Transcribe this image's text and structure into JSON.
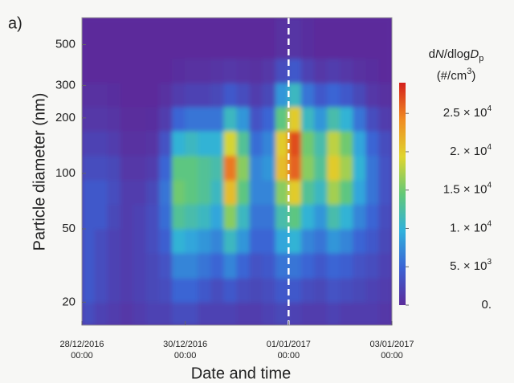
{
  "panel_label": "a)",
  "chart_data": {
    "type": "heatmap",
    "xlabel": "Date and time",
    "ylabel": "Particle diameter  (nm)",
    "xlim": [
      "2016-12-28 00:00",
      "2017-01-03 00:00"
    ],
    "xticks": [
      {
        "value": "2016-12-28 00:00",
        "label": "28/12/2016 00:00"
      },
      {
        "value": "2016-12-30 00:00",
        "label": "30/12/2016 00:00"
      },
      {
        "value": "2017-01-01 00:00",
        "label": "01/01/2017 00:00"
      },
      {
        "value": "2017-01-03 00:00",
        "label": "03/01/2017 00:00"
      }
    ],
    "yscale": "log",
    "ylim": [
      15,
      700
    ],
    "yticks": [
      20,
      50,
      100,
      200,
      300,
      500
    ],
    "vline": {
      "x": "2017-01-01 00:00",
      "color": "#ffffff",
      "style": "dashed"
    },
    "x_bins": [
      "2016-12-28 00:00",
      "2016-12-28 06:00",
      "2016-12-28 12:00",
      "2016-12-28 18:00",
      "2016-12-29 00:00",
      "2016-12-29 06:00",
      "2016-12-29 12:00",
      "2016-12-29 18:00",
      "2016-12-30 00:00",
      "2016-12-30 06:00",
      "2016-12-30 12:00",
      "2016-12-30 18:00",
      "2016-12-31 00:00",
      "2016-12-31 06:00",
      "2016-12-31 12:00",
      "2016-12-31 18:00",
      "2017-01-01 00:00",
      "2017-01-01 06:00",
      "2017-01-01 12:00",
      "2017-01-01 18:00",
      "2017-01-02 00:00",
      "2017-01-02 06:00",
      "2017-01-02 12:00",
      "2017-01-02 18:00",
      "2017-01-03 00:00"
    ],
    "y_bins": [
      15,
      20,
      27,
      37,
      50,
      68,
      92,
      125,
      170,
      230,
      310,
      420,
      700
    ],
    "values": [
      [
        3000,
        4000,
        4000,
        4000,
        4000,
        4000,
        3000,
        2000,
        1000,
        500,
        0,
        0
      ],
      [
        2000,
        3000,
        3000,
        3000,
        4000,
        4000,
        3000,
        2000,
        1000,
        500,
        0,
        0
      ],
      [
        1500,
        2000,
        2000,
        2000,
        2500,
        3000,
        2500,
        1500,
        800,
        300,
        0,
        0
      ],
      [
        1000,
        1500,
        1500,
        1500,
        1500,
        1500,
        1000,
        500,
        200,
        0,
        0,
        0
      ],
      [
        1500,
        2000,
        2000,
        2000,
        2000,
        1500,
        1000,
        500,
        200,
        0,
        0,
        0
      ],
      [
        2000,
        2500,
        2500,
        3000,
        3000,
        2500,
        1500,
        800,
        300,
        0,
        0,
        0
      ],
      [
        2000,
        3000,
        3500,
        4500,
        5500,
        6000,
        5000,
        3500,
        1500,
        500,
        0,
        0
      ],
      [
        3000,
        5000,
        7000,
        10000,
        13000,
        15000,
        14000,
        10000,
        5000,
        1500,
        300,
        0
      ],
      [
        3000,
        5000,
        7000,
        9000,
        12000,
        14000,
        14000,
        11000,
        6000,
        2000,
        500,
        0
      ],
      [
        2000,
        4000,
        6000,
        8000,
        11000,
        13000,
        13000,
        10000,
        6000,
        2000,
        500,
        0
      ],
      [
        2000,
        3000,
        5000,
        7000,
        9000,
        11000,
        12000,
        10000,
        6000,
        2500,
        800,
        0
      ],
      [
        2000,
        4000,
        7000,
        11000,
        16000,
        21000,
        25000,
        19000,
        11000,
        4000,
        1000,
        0
      ],
      [
        1500,
        3000,
        5000,
        8000,
        11000,
        14000,
        16000,
        13000,
        8000,
        3000,
        800,
        0
      ],
      [
        1500,
        2500,
        3500,
        5000,
        6000,
        7000,
        7000,
        5500,
        3500,
        1500,
        500,
        0
      ],
      [
        2000,
        3000,
        4000,
        5000,
        6000,
        7000,
        8000,
        7000,
        5000,
        2500,
        1000,
        0
      ],
      [
        2500,
        4000,
        6000,
        9000,
        12000,
        16000,
        21000,
        20000,
        14000,
        8000,
        3000,
        500
      ],
      [
        2000,
        4000,
        6000,
        10000,
        14000,
        20000,
        26000,
        27000,
        20000,
        11000,
        4000,
        800
      ],
      [
        1500,
        3000,
        5000,
        7000,
        10000,
        13000,
        16000,
        15000,
        11000,
        6000,
        2000,
        300
      ],
      [
        1500,
        2500,
        4000,
        6000,
        8000,
        11000,
        13000,
        12000,
        8000,
        4000,
        1000,
        0
      ],
      [
        2000,
        3500,
        5000,
        8000,
        12000,
        17000,
        20000,
        18000,
        12000,
        5000,
        1500,
        0
      ],
      [
        1500,
        3000,
        4500,
        7000,
        10000,
        14000,
        17000,
        15000,
        10000,
        4000,
        1000,
        0
      ],
      [
        1500,
        2500,
        3500,
        5000,
        7000,
        9000,
        10000,
        9000,
        6000,
        2500,
        500,
        0
      ],
      [
        1500,
        2000,
        3000,
        4000,
        5000,
        6000,
        6000,
        5000,
        3000,
        1000,
        300,
        0
      ],
      [
        1000,
        1500,
        2000,
        2500,
        3000,
        3500,
        3500,
        3000,
        1500,
        500,
        0,
        0
      ]
    ],
    "colorscale": [
      "#5b2c9b",
      "#3b62d4",
      "#2fb1dc",
      "#62c877",
      "#dfd52e",
      "#f08c22",
      "#d4201c"
    ],
    "zlim": [
      0,
      29000
    ],
    "colorbar_title": [
      {
        "text": "d"
      },
      {
        "text": "N",
        "style": "italic"
      },
      {
        "text": "/dlog"
      },
      {
        "text": "D",
        "style": "italic"
      },
      {
        "text": "p",
        "style": "sub"
      }
    ],
    "colorbar_unit": [
      {
        "text": "(#/cm"
      },
      {
        "text": "3",
        "style": "sup"
      },
      {
        "text": ")"
      }
    ],
    "zticks": [
      {
        "value": 0,
        "label": "0."
      },
      {
        "value": 5000,
        "label": "5. × 10",
        "sup": "3"
      },
      {
        "value": 10000,
        "label": "1. × 10",
        "sup": "4"
      },
      {
        "value": 15000,
        "label": "1.5 × 10",
        "sup": "4"
      },
      {
        "value": 20000,
        "label": "2. × 10",
        "sup": "4"
      },
      {
        "value": 25000,
        "label": "2.5 × 10",
        "sup": "4"
      }
    ]
  }
}
